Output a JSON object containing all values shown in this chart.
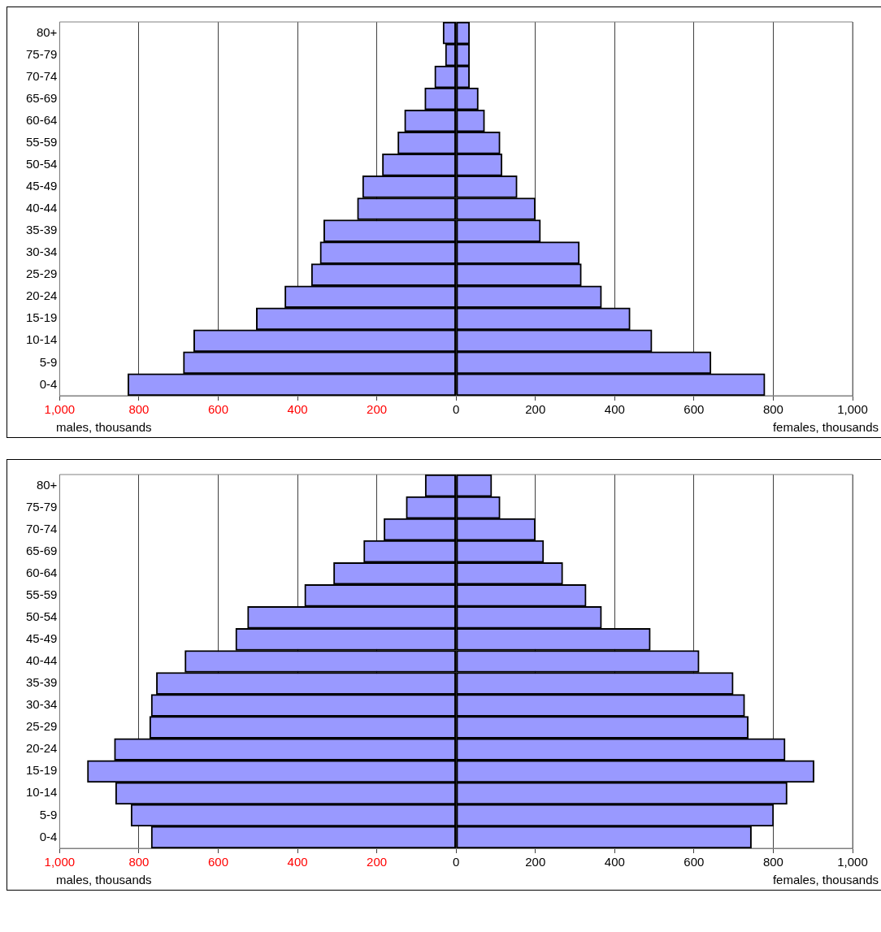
{
  "chart_data": [
    {
      "type": "bar",
      "orientation": "horizontal",
      "stacked": true,
      "grid": "x",
      "legend": false,
      "categories": [
        "80+",
        "75-79",
        "70-74",
        "65-69",
        "60-64",
        "55-59",
        "50-54",
        "45-49",
        "40-44",
        "35-39",
        "30-34",
        "25-29",
        "20-24",
        "15-19",
        "10-14",
        "5-9",
        "0-4"
      ],
      "series": [
        {
          "color": "#9999ff",
          "values": [
            -33,
            -27,
            -54,
            -79,
            -130,
            -147,
            -186,
            -236,
            -249,
            -334,
            -343,
            -365,
            -432,
            -504,
            -662,
            -688,
            -828
          ]
        },
        {
          "color": "#9999ff",
          "values": [
            34,
            34,
            34,
            56,
            72,
            111,
            116,
            154,
            200,
            213,
            311,
            316,
            367,
            439,
            494,
            643,
            779
          ]
        }
      ],
      "xlim": [
        -1000,
        1000
      ],
      "xticks": [
        {
          "value": -1000,
          "label": "1,000"
        },
        {
          "value": -800,
          "label": "800"
        },
        {
          "value": -600,
          "label": "600"
        },
        {
          "value": -400,
          "label": "400"
        },
        {
          "value": -200,
          "label": "200"
        },
        0,
        200,
        400,
        600,
        800,
        {
          "value": 1000,
          "label": "1,000"
        }
      ],
      "annotations": [
        "males, thousands",
        "females, thousands"
      ]
    },
    {
      "type": "bar",
      "orientation": "horizontal",
      "stacked": true,
      "grid": "x",
      "legend": false,
      "categories": [
        "80+",
        "75-79",
        "70-74",
        "65-69",
        "60-64",
        "55-59",
        "50-54",
        "45-49",
        "40-44",
        "35-39",
        "30-34",
        "25-29",
        "20-24",
        "15-19",
        "10-14",
        "5-9",
        "0-4"
      ],
      "series": [
        {
          "color": "#9999ff",
          "values": [
            -78,
            -126,
            -182,
            -233,
            -309,
            -382,
            -526,
            -556,
            -684,
            -756,
            -769,
            -773,
            -862,
            -930,
            -859,
            -820,
            -769
          ]
        },
        {
          "color": "#9999ff",
          "values": [
            90,
            111,
            200,
            221,
            269,
            328,
            367,
            490,
            613,
            699,
            728,
            737,
            830,
            903,
            835,
            801,
            745
          ]
        }
      ],
      "xlim": [
        -1000,
        1000
      ],
      "xticks": [
        {
          "value": -1000,
          "label": "1,000"
        },
        {
          "value": -800,
          "label": "800"
        },
        {
          "value": -600,
          "label": "600"
        },
        {
          "value": -400,
          "label": "400"
        },
        {
          "value": -200,
          "label": "200"
        },
        0,
        200,
        400,
        600,
        800,
        {
          "value": 1000,
          "label": "1,000"
        }
      ],
      "annotations": [
        "males, thousands",
        "females, thousands"
      ]
    }
  ]
}
